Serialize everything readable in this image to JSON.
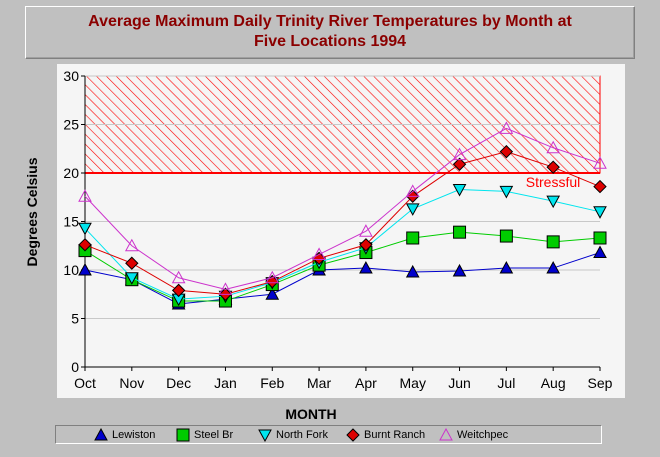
{
  "title": {
    "line1": "Average Maximum Daily Trinity River Temperatures by Month at",
    "line2": "Five Locations 1994"
  },
  "colors": {
    "background": "#c0c0c0",
    "plot_background": "#f5f5f5",
    "title_text": "#8b0000",
    "threshold_line": "#ff0000",
    "hatch": "#ff0000"
  },
  "chart_data": {
    "type": "line",
    "xlabel": "MONTH",
    "ylabel": "Degrees Celsius",
    "categories": [
      "Oct",
      "Nov",
      "Dec",
      "Jan",
      "Feb",
      "Mar",
      "Apr",
      "May",
      "Jun",
      "Jul",
      "Aug",
      "Sep"
    ],
    "ylim": [
      0,
      30
    ],
    "yticks": [
      0,
      5,
      10,
      15,
      20,
      25,
      30
    ],
    "grid": true,
    "legend_position": "bottom",
    "threshold": {
      "value": 20,
      "label": "Stressful",
      "band": [
        20,
        30
      ]
    },
    "series": [
      {
        "name": "Lewiston",
        "marker": "triangle-up",
        "color": "#0000cc",
        "values": [
          10.0,
          9.0,
          6.5,
          7.0,
          7.5,
          10.0,
          10.2,
          9.8,
          9.9,
          10.2,
          10.2,
          11.8
        ]
      },
      {
        "name": "Steel Br",
        "marker": "square",
        "color": "#00cc00",
        "values": [
          12.0,
          9.0,
          6.8,
          6.8,
          8.5,
          10.5,
          11.8,
          13.3,
          13.9,
          13.5,
          12.9,
          13.3
        ]
      },
      {
        "name": "North Fork",
        "marker": "triangle-down",
        "color": "#00e5ee",
        "values": [
          14.3,
          9.2,
          7.0,
          7.3,
          8.7,
          10.8,
          12.3,
          16.3,
          18.3,
          18.1,
          17.1,
          16.0
        ]
      },
      {
        "name": "Burnt Ranch",
        "marker": "diamond",
        "color": "#dd0000",
        "values": [
          12.6,
          10.7,
          7.9,
          7.5,
          8.8,
          11.2,
          12.6,
          17.6,
          20.9,
          22.2,
          20.6,
          18.6
        ]
      },
      {
        "name": "Weitchpec",
        "marker": "triangle-up-open",
        "color": "#cc33cc",
        "values": [
          17.6,
          12.5,
          9.2,
          8.0,
          9.2,
          11.6,
          14.0,
          18.1,
          21.9,
          24.6,
          22.6,
          21.0
        ]
      }
    ]
  }
}
